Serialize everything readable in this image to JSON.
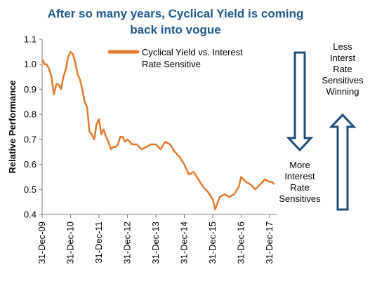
{
  "title_lines": [
    "After so many years, Cyclical Yield is coming",
    "back into vogue"
  ],
  "annotations": {
    "top_right": [
      "Less",
      "Interst",
      "Rate",
      "Sensitives",
      "Winning"
    ],
    "bottom_right": [
      "More",
      "Interest",
      "Rate",
      "Sensitives"
    ],
    "arrow_color": "#1f4e79"
  },
  "chart_data": {
    "type": "line",
    "title": "After so many years, Cyclical Yield is coming back into vogue",
    "xlabel": "",
    "ylabel": "Relative Performance",
    "ylim": [
      0.4,
      1.1
    ],
    "yticks": [
      0.4,
      0.5,
      0.6,
      0.7,
      0.8,
      0.9,
      1.0,
      1.1
    ],
    "ytick_labels": [
      "0.4",
      "0.5",
      "0.6",
      "0.7",
      "0.8",
      "0.9",
      "1.0",
      "1.1"
    ],
    "xlim": [
      "2009-12-31",
      "2018-03-31"
    ],
    "xticks": [
      "2009-12-31",
      "2010-12-31",
      "2011-12-31",
      "2012-12-31",
      "2013-12-31",
      "2014-12-31",
      "2015-12-31",
      "2016-12-31",
      "2017-12-31"
    ],
    "xtick_labels": [
      "31-Dec-09",
      "31-Dec-10",
      "31-Dec-11",
      "31-Dec-12",
      "31-Dec-13",
      "31-Dec-14",
      "31-Dec-15",
      "31-Dec-16",
      "31-Dec-17"
    ],
    "grid": false,
    "legend_position": "top-center",
    "series": [
      {
        "name": "Cyclical Yield vs. Interest Rate Sensitive",
        "color": "#e07b2e",
        "x": [
          "2009-12-31",
          "2010-01-31",
          "2010-02-28",
          "2010-03-31",
          "2010-04-30",
          "2010-05-31",
          "2010-06-30",
          "2010-07-31",
          "2010-08-31",
          "2010-09-30",
          "2010-10-31",
          "2010-11-30",
          "2010-12-31",
          "2011-01-31",
          "2011-02-28",
          "2011-03-31",
          "2011-04-30",
          "2011-05-31",
          "2011-06-30",
          "2011-07-31",
          "2011-08-31",
          "2011-09-30",
          "2011-10-31",
          "2011-11-30",
          "2011-12-31",
          "2012-01-31",
          "2012-02-29",
          "2012-03-31",
          "2012-04-30",
          "2012-05-31",
          "2012-06-30",
          "2012-07-31",
          "2012-08-31",
          "2012-09-30",
          "2012-10-31",
          "2012-11-30",
          "2012-12-31",
          "2013-02-28",
          "2013-04-30",
          "2013-06-30",
          "2013-08-31",
          "2013-10-31",
          "2013-12-31",
          "2014-02-28",
          "2014-04-30",
          "2014-06-30",
          "2014-08-31",
          "2014-10-31",
          "2014-12-31",
          "2015-02-28",
          "2015-04-30",
          "2015-06-30",
          "2015-08-31",
          "2015-10-31",
          "2015-12-31",
          "2016-01-31",
          "2016-03-31",
          "2016-05-31",
          "2016-07-31",
          "2016-09-30",
          "2016-11-30",
          "2016-12-31",
          "2017-02-28",
          "2017-04-30",
          "2017-06-30",
          "2017-08-31",
          "2017-10-31",
          "2017-12-31",
          "2018-01-31",
          "2018-02-28"
        ],
        "y": [
          1.02,
          1.0,
          1.0,
          0.98,
          0.95,
          0.88,
          0.92,
          0.92,
          0.9,
          0.95,
          0.98,
          1.03,
          1.05,
          1.04,
          1.01,
          0.96,
          0.94,
          0.9,
          0.85,
          0.83,
          0.73,
          0.72,
          0.7,
          0.76,
          0.78,
          0.72,
          0.74,
          0.71,
          0.69,
          0.66,
          0.67,
          0.67,
          0.68,
          0.71,
          0.71,
          0.69,
          0.7,
          0.68,
          0.68,
          0.66,
          0.67,
          0.68,
          0.68,
          0.66,
          0.69,
          0.68,
          0.65,
          0.63,
          0.6,
          0.56,
          0.57,
          0.54,
          0.51,
          0.49,
          0.46,
          0.42,
          0.47,
          0.48,
          0.47,
          0.48,
          0.51,
          0.55,
          0.53,
          0.52,
          0.5,
          0.52,
          0.54,
          0.53,
          0.53,
          0.52
        ]
      }
    ]
  }
}
